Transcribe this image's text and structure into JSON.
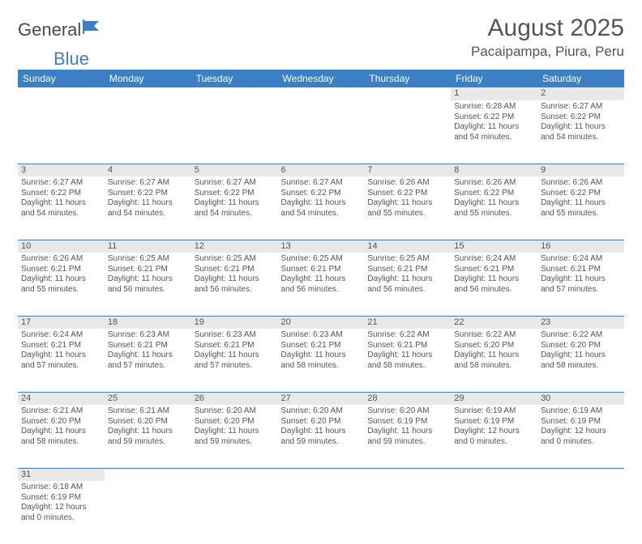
{
  "logo": {
    "part1": "General",
    "part2": "Blue"
  },
  "title": "August 2025",
  "location": "Pacaipampa, Piura, Peru",
  "colors": {
    "header_bg": "#3b7fc4",
    "header_text": "#ffffff",
    "daynum_bg": "#e8e8e8",
    "text": "#555555",
    "divider": "#3b7fc4",
    "background": "#ffffff"
  },
  "weekdays": [
    "Sunday",
    "Monday",
    "Tuesday",
    "Wednesday",
    "Thursday",
    "Friday",
    "Saturday"
  ],
  "weeks": [
    [
      null,
      null,
      null,
      null,
      null,
      {
        "d": "1",
        "sr": "6:28 AM",
        "ss": "6:22 PM",
        "dl": "11 hours and 54 minutes."
      },
      {
        "d": "2",
        "sr": "6:27 AM",
        "ss": "6:22 PM",
        "dl": "11 hours and 54 minutes."
      }
    ],
    [
      {
        "d": "3",
        "sr": "6:27 AM",
        "ss": "6:22 PM",
        "dl": "11 hours and 54 minutes."
      },
      {
        "d": "4",
        "sr": "6:27 AM",
        "ss": "6:22 PM",
        "dl": "11 hours and 54 minutes."
      },
      {
        "d": "5",
        "sr": "6:27 AM",
        "ss": "6:22 PM",
        "dl": "11 hours and 54 minutes."
      },
      {
        "d": "6",
        "sr": "6:27 AM",
        "ss": "6:22 PM",
        "dl": "11 hours and 54 minutes."
      },
      {
        "d": "7",
        "sr": "6:26 AM",
        "ss": "6:22 PM",
        "dl": "11 hours and 55 minutes."
      },
      {
        "d": "8",
        "sr": "6:26 AM",
        "ss": "6:22 PM",
        "dl": "11 hours and 55 minutes."
      },
      {
        "d": "9",
        "sr": "6:26 AM",
        "ss": "6:22 PM",
        "dl": "11 hours and 55 minutes."
      }
    ],
    [
      {
        "d": "10",
        "sr": "6:26 AM",
        "ss": "6:21 PM",
        "dl": "11 hours and 55 minutes."
      },
      {
        "d": "11",
        "sr": "6:25 AM",
        "ss": "6:21 PM",
        "dl": "11 hours and 56 minutes."
      },
      {
        "d": "12",
        "sr": "6:25 AM",
        "ss": "6:21 PM",
        "dl": "11 hours and 56 minutes."
      },
      {
        "d": "13",
        "sr": "6:25 AM",
        "ss": "6:21 PM",
        "dl": "11 hours and 56 minutes."
      },
      {
        "d": "14",
        "sr": "6:25 AM",
        "ss": "6:21 PM",
        "dl": "11 hours and 56 minutes."
      },
      {
        "d": "15",
        "sr": "6:24 AM",
        "ss": "6:21 PM",
        "dl": "11 hours and 56 minutes."
      },
      {
        "d": "16",
        "sr": "6:24 AM",
        "ss": "6:21 PM",
        "dl": "11 hours and 57 minutes."
      }
    ],
    [
      {
        "d": "17",
        "sr": "6:24 AM",
        "ss": "6:21 PM",
        "dl": "11 hours and 57 minutes."
      },
      {
        "d": "18",
        "sr": "6:23 AM",
        "ss": "6:21 PM",
        "dl": "11 hours and 57 minutes."
      },
      {
        "d": "19",
        "sr": "6:23 AM",
        "ss": "6:21 PM",
        "dl": "11 hours and 57 minutes."
      },
      {
        "d": "20",
        "sr": "6:23 AM",
        "ss": "6:21 PM",
        "dl": "11 hours and 58 minutes."
      },
      {
        "d": "21",
        "sr": "6:22 AM",
        "ss": "6:21 PM",
        "dl": "11 hours and 58 minutes."
      },
      {
        "d": "22",
        "sr": "6:22 AM",
        "ss": "6:20 PM",
        "dl": "11 hours and 58 minutes."
      },
      {
        "d": "23",
        "sr": "6:22 AM",
        "ss": "6:20 PM",
        "dl": "11 hours and 58 minutes."
      }
    ],
    [
      {
        "d": "24",
        "sr": "6:21 AM",
        "ss": "6:20 PM",
        "dl": "11 hours and 58 minutes."
      },
      {
        "d": "25",
        "sr": "6:21 AM",
        "ss": "6:20 PM",
        "dl": "11 hours and 59 minutes."
      },
      {
        "d": "26",
        "sr": "6:20 AM",
        "ss": "6:20 PM",
        "dl": "11 hours and 59 minutes."
      },
      {
        "d": "27",
        "sr": "6:20 AM",
        "ss": "6:20 PM",
        "dl": "11 hours and 59 minutes."
      },
      {
        "d": "28",
        "sr": "6:20 AM",
        "ss": "6:19 PM",
        "dl": "11 hours and 59 minutes."
      },
      {
        "d": "29",
        "sr": "6:19 AM",
        "ss": "6:19 PM",
        "dl": "12 hours and 0 minutes."
      },
      {
        "d": "30",
        "sr": "6:19 AM",
        "ss": "6:19 PM",
        "dl": "12 hours and 0 minutes."
      }
    ],
    [
      {
        "d": "31",
        "sr": "6:18 AM",
        "ss": "6:19 PM",
        "dl": "12 hours and 0 minutes."
      },
      null,
      null,
      null,
      null,
      null,
      null
    ]
  ],
  "labels": {
    "sunrise": "Sunrise:",
    "sunset": "Sunset:",
    "daylight": "Daylight:"
  }
}
